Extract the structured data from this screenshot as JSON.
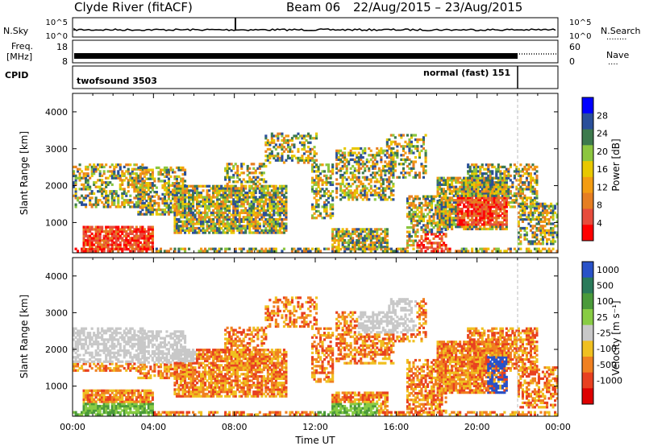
{
  "header": {
    "station": "Clyde River (fitACF)",
    "beam": "Beam 06",
    "date_range": "22/Aug/2015 – 23/Aug/2015"
  },
  "noise_panel": {
    "label_left": "N.Sky",
    "label_right": "N.Search",
    "tick_top_left": "10^5",
    "tick_bottom_left": "10^0",
    "tick_top_right": "10^5",
    "tick_bottom_right": "10^0"
  },
  "freq_panel": {
    "label_line1": "Freq.",
    "label_line2": "[MHz]",
    "tick_top_left": "18",
    "tick_bottom_left": "8",
    "tick_top_right": "60",
    "tick_bottom_right": "0",
    "label_right": "Nave"
  },
  "cpid_panel": {
    "label": "CPID",
    "program_1": "twofsound 3503",
    "program_2": "normal (fast) 151"
  },
  "chart_data": [
    {
      "type": "heatmap",
      "name": "power",
      "ylabel": "Slant Range [km]",
      "ylim": [
        180,
        4500
      ],
      "yticks": [
        1000,
        2000,
        3000,
        4000
      ],
      "xlim": [
        0,
        24
      ],
      "xticks": [
        "00:00",
        "04:00",
        "08:00",
        "12:00",
        "16:00",
        "20:00",
        "00:00"
      ],
      "colorbar": {
        "label": "Power [dB]",
        "ticks": [
          "4",
          "8",
          "12",
          "16",
          "20",
          "24",
          "28"
        ],
        "range": [
          0,
          30
        ],
        "colors": [
          "#0000ff",
          "#2a4f9a",
          "#3d7a4d",
          "#8cc63f",
          "#e8c800",
          "#f39c12",
          "#e67e22",
          "#e74c3c",
          "#ff0000"
        ]
      },
      "mode_change_hour": 22
    },
    {
      "type": "heatmap",
      "name": "velocity",
      "ylabel": "Slant Range [km]",
      "ylim": [
        180,
        4500
      ],
      "yticks": [
        1000,
        2000,
        3000,
        4000
      ],
      "xlim": [
        0,
        24
      ],
      "xticks": [
        "00:00",
        "04:00",
        "08:00",
        "12:00",
        "16:00",
        "20:00",
        "00:00"
      ],
      "xlabel": "Time UT",
      "colorbar": {
        "label": "Velocity [m s⁻¹]",
        "ticks": [
          "1000",
          "500",
          "100",
          "25",
          "-25",
          "-100",
          "-500",
          "-1000"
        ],
        "colors": [
          "#2952c8",
          "#2a7a5a",
          "#4a9a3a",
          "#88cc44",
          "#c8c8c8",
          "#f0c020",
          "#f08020",
          "#e84020",
          "#dd0000"
        ]
      },
      "mode_change_hour": 22
    }
  ]
}
